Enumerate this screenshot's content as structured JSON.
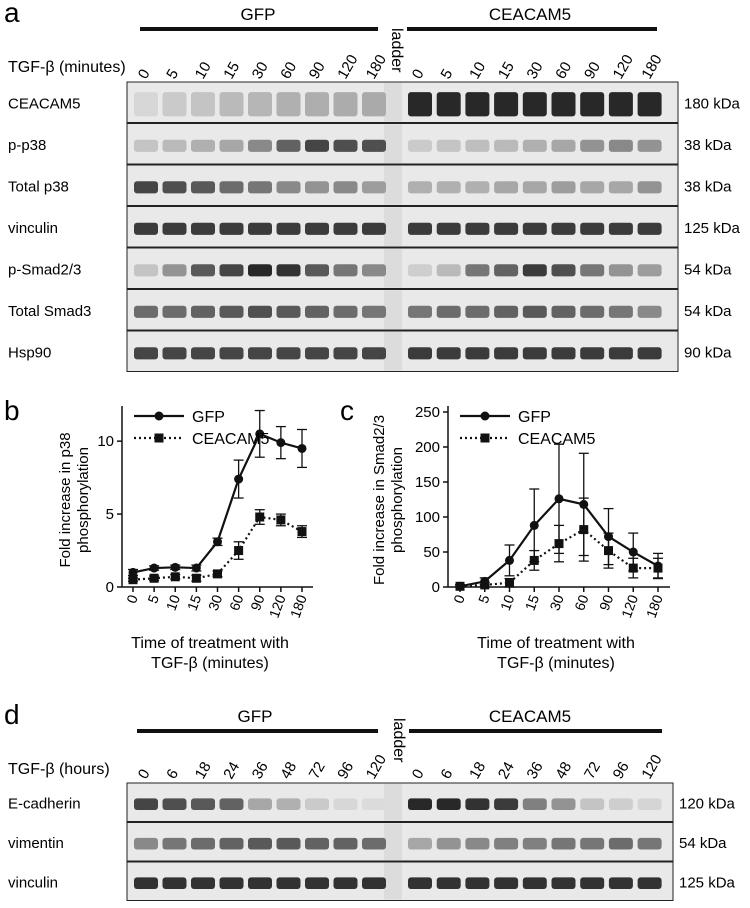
{
  "panel_a": {
    "letter": "a",
    "group_left": "GFP",
    "group_right": "CEACAM5",
    "ladder": "ladder",
    "treatment_label": "TGF-β (minutes)",
    "timepoints": [
      "0",
      "5",
      "10",
      "15",
      "30",
      "60",
      "90",
      "120",
      "180"
    ],
    "blots": [
      {
        "name": "CEACAM5",
        "size": "180 kDa",
        "gfp": [
          0.05,
          0.12,
          0.15,
          0.2,
          0.22,
          0.25,
          0.26,
          0.27,
          0.28
        ],
        "cea": [
          0.95,
          0.95,
          0.95,
          0.95,
          0.95,
          0.95,
          0.95,
          0.95,
          0.95
        ]
      },
      {
        "name": "p-p38",
        "size": "38 kDa",
        "gfp": [
          0.15,
          0.2,
          0.25,
          0.3,
          0.45,
          0.65,
          0.8,
          0.75,
          0.75
        ],
        "cea": [
          0.12,
          0.15,
          0.18,
          0.2,
          0.25,
          0.3,
          0.4,
          0.45,
          0.4
        ]
      },
      {
        "name": "Total p38",
        "size": "38 kDa",
        "gfp": [
          0.8,
          0.75,
          0.7,
          0.6,
          0.55,
          0.45,
          0.4,
          0.45,
          0.35
        ],
        "cea": [
          0.25,
          0.25,
          0.25,
          0.3,
          0.3,
          0.35,
          0.3,
          0.3,
          0.4
        ]
      },
      {
        "name": "vinculin",
        "size": "125 kDa",
        "gfp": [
          0.85,
          0.85,
          0.85,
          0.85,
          0.85,
          0.85,
          0.85,
          0.85,
          0.85
        ],
        "cea": [
          0.85,
          0.85,
          0.85,
          0.85,
          0.85,
          0.85,
          0.85,
          0.85,
          0.85
        ]
      },
      {
        "name": "p-Smad2/3",
        "size": "54 kDa",
        "gfp": [
          0.15,
          0.4,
          0.7,
          0.8,
          0.95,
          0.9,
          0.7,
          0.55,
          0.45
        ],
        "cea": [
          0.1,
          0.2,
          0.55,
          0.65,
          0.85,
          0.75,
          0.55,
          0.4,
          0.35
        ]
      },
      {
        "name": "Total Smad3",
        "size": "54 kDa",
        "gfp": [
          0.6,
          0.6,
          0.65,
          0.7,
          0.75,
          0.7,
          0.65,
          0.6,
          0.55
        ],
        "cea": [
          0.55,
          0.6,
          0.6,
          0.65,
          0.7,
          0.65,
          0.6,
          0.55,
          0.45
        ]
      },
      {
        "name": "Hsp90",
        "size": "90 kDa",
        "gfp": [
          0.8,
          0.8,
          0.8,
          0.8,
          0.8,
          0.8,
          0.8,
          0.8,
          0.8
        ],
        "cea": [
          0.85,
          0.85,
          0.85,
          0.85,
          0.85,
          0.85,
          0.85,
          0.85,
          0.85
        ]
      }
    ]
  },
  "panel_b": {
    "letter": "b",
    "chart_data": {
      "type": "line",
      "categories": [
        "0",
        "5",
        "10",
        "15",
        "30",
        "60",
        "90",
        "120",
        "180"
      ],
      "ylabel_lines": [
        "Fold increase in p38",
        "phosphorylation"
      ],
      "xlabel_lines": [
        "Time of treatment with",
        "TGF-β (minutes)"
      ],
      "ylim": [
        0,
        12
      ],
      "yticks": [
        0,
        5,
        10
      ],
      "legend_placement": "top-left",
      "series": [
        {
          "name": "GFP",
          "style": "solid",
          "marker": "circle",
          "values": [
            1.0,
            1.3,
            1.35,
            1.3,
            3.1,
            7.4,
            10.5,
            9.9,
            9.5
          ],
          "errors": [
            0.2,
            0.15,
            0.15,
            0.2,
            0.25,
            1.3,
            1.6,
            1.1,
            1.3
          ]
        },
        {
          "name": "CEACAM5",
          "style": "dotted",
          "marker": "square",
          "values": [
            0.5,
            0.6,
            0.7,
            0.6,
            0.9,
            2.5,
            4.8,
            4.6,
            3.8
          ],
          "errors": [
            0.1,
            0.15,
            0.15,
            0.2,
            0.2,
            0.6,
            0.5,
            0.4,
            0.4
          ]
        }
      ]
    }
  },
  "panel_c": {
    "letter": "c",
    "chart_data": {
      "type": "line",
      "categories": [
        "0",
        "5",
        "10",
        "15",
        "30",
        "60",
        "90",
        "120",
        "180"
      ],
      "ylabel_lines": [
        "Fold increase in Smad2/3",
        "phosphorylation"
      ],
      "xlabel_lines": [
        "Time of treatment with",
        "TGF-β (minutes)"
      ],
      "ylim": [
        0,
        250
      ],
      "yticks": [
        0,
        50,
        100,
        150,
        200,
        250
      ],
      "legend_placement": "top-left",
      "series": [
        {
          "name": "GFP",
          "style": "solid",
          "marker": "circle",
          "values": [
            1,
            8,
            38,
            88,
            126,
            118,
            72,
            50,
            30
          ],
          "errors": [
            2,
            5,
            22,
            52,
            78,
            73,
            40,
            27,
            18
          ]
        },
        {
          "name": "CEACAM5",
          "style": "dotted",
          "marker": "square",
          "values": [
            1,
            3,
            6,
            38,
            62,
            82,
            52,
            27,
            27
          ],
          "errors": [
            2,
            3,
            6,
            14,
            26,
            45,
            25,
            14,
            14
          ]
        }
      ]
    }
  },
  "panel_d": {
    "letter": "d",
    "group_left": "GFP",
    "group_right": "CEACAM5",
    "ladder": "ladder",
    "treatment_label": "TGF-β (hours)",
    "timepoints": [
      "0",
      "6",
      "18",
      "24",
      "36",
      "48",
      "72",
      "96",
      "120"
    ],
    "blots": [
      {
        "name": "E-cadherin",
        "size": "120 kDa",
        "gfp": [
          0.8,
          0.75,
          0.7,
          0.65,
          0.3,
          0.25,
          0.12,
          0.05,
          0.03
        ],
        "cea": [
          0.95,
          0.95,
          0.9,
          0.85,
          0.5,
          0.4,
          0.15,
          0.1,
          0.06
        ]
      },
      {
        "name": "vimentin",
        "size": "54 kDa",
        "gfp": [
          0.45,
          0.55,
          0.6,
          0.65,
          0.7,
          0.7,
          0.65,
          0.65,
          0.6
        ],
        "cea": [
          0.3,
          0.4,
          0.45,
          0.5,
          0.5,
          0.55,
          0.55,
          0.6,
          0.55
        ]
      },
      {
        "name": "vinculin",
        "size": "125 kDa",
        "gfp": [
          0.9,
          0.9,
          0.9,
          0.9,
          0.9,
          0.9,
          0.9,
          0.9,
          0.9
        ],
        "cea": [
          0.9,
          0.9,
          0.9,
          0.9,
          0.9,
          0.9,
          0.9,
          0.9,
          0.9
        ]
      }
    ]
  }
}
